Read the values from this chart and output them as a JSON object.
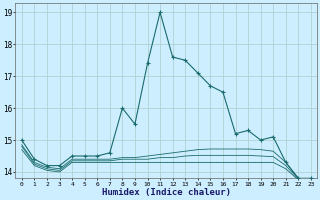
{
  "xlabel": "Humidex (Indice chaleur)",
  "background_color": "#cceeff",
  "grid_color": "#aacccc",
  "line_color": "#1a6b6b",
  "x_values": [
    0,
    1,
    2,
    3,
    4,
    5,
    6,
    7,
    8,
    9,
    10,
    11,
    12,
    13,
    14,
    15,
    16,
    17,
    18,
    19,
    20,
    21,
    22,
    23
  ],
  "series1": [
    15.0,
    14.4,
    14.2,
    14.2,
    14.5,
    14.5,
    14.5,
    14.6,
    16.0,
    15.5,
    17.4,
    19.0,
    17.6,
    17.5,
    17.1,
    16.7,
    16.5,
    15.2,
    15.3,
    15.0,
    15.1,
    14.3,
    13.8,
    13.8
  ],
  "series2": [
    14.85,
    14.3,
    14.15,
    14.1,
    14.4,
    14.4,
    14.4,
    14.4,
    14.45,
    14.45,
    14.5,
    14.55,
    14.6,
    14.65,
    14.7,
    14.72,
    14.72,
    14.72,
    14.72,
    14.7,
    14.65,
    14.3,
    13.8,
    13.8
  ],
  "series3": [
    14.8,
    14.25,
    14.1,
    14.05,
    14.35,
    14.35,
    14.35,
    14.35,
    14.4,
    14.4,
    14.4,
    14.45,
    14.45,
    14.5,
    14.52,
    14.52,
    14.52,
    14.52,
    14.52,
    14.5,
    14.48,
    14.2,
    13.78,
    13.78
  ],
  "series4": [
    14.7,
    14.2,
    14.05,
    14.0,
    14.3,
    14.3,
    14.3,
    14.3,
    14.3,
    14.3,
    14.3,
    14.3,
    14.3,
    14.3,
    14.3,
    14.3,
    14.3,
    14.3,
    14.3,
    14.3,
    14.3,
    14.1,
    13.75,
    13.75
  ],
  "ylim": [
    13.8,
    19.3
  ],
  "yticks": [
    14,
    15,
    16,
    17,
    18,
    19
  ],
  "xlim": [
    -0.5,
    23.5
  ]
}
